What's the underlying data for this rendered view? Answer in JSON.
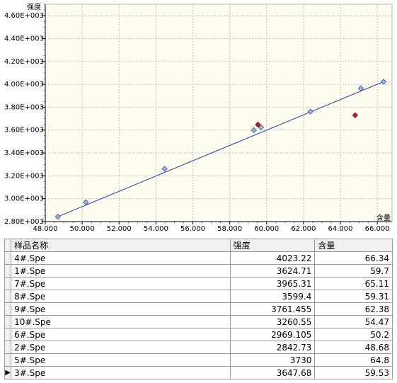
{
  "chart_data": {
    "type": "scatter",
    "xlabel": "含量",
    "ylabel": "强度",
    "xlim": [
      48.0,
      66.8
    ],
    "ylim": [
      2800,
      4700
    ],
    "x_ticks": [
      "48.000",
      "50.000",
      "52.000",
      "54.000",
      "56.000",
      "58.000",
      "60.000",
      "62.000",
      "64.000",
      "66.000"
    ],
    "y_ticks": [
      "2.80E+003",
      "3.00E+003",
      "3.20E+003",
      "3.40E+003",
      "3.60E+003",
      "3.80E+003",
      "4.00E+003",
      "4.20E+003",
      "4.40E+003",
      "4.60E+003"
    ],
    "calibration_line": [
      [
        48.68,
        2842.73
      ],
      [
        66.34,
        4023.22
      ]
    ],
    "series": [
      {
        "name": "",
        "marker": "diamond",
        "color": "#9bb7e0",
        "points": [
          [
            48.68,
            2842.73
          ],
          [
            50.2,
            2969.105
          ],
          [
            54.47,
            3260.55
          ],
          [
            59.31,
            3599.4
          ],
          [
            59.7,
            3624.71
          ],
          [
            62.38,
            3761.455
          ],
          [
            65.11,
            3965.31
          ],
          [
            66.34,
            4023.22
          ]
        ]
      },
      {
        "name": "",
        "marker": "diamond",
        "color": "#c0182a",
        "points": [
          [
            59.53,
            3647.68
          ],
          [
            64.8,
            3730
          ]
        ]
      }
    ],
    "grid": true,
    "colors": {
      "plot_bg": "#fefdf0",
      "line": "#2c3e9e",
      "grid": "#bdbdbd"
    }
  },
  "table": {
    "headers": [
      "样品名称",
      "强度",
      "含量"
    ],
    "rows": [
      {
        "name": "4#.Spe",
        "intensity": "4023.22",
        "content": "66.34"
      },
      {
        "name": "1#.Spe",
        "intensity": "3624.71",
        "content": "59.7"
      },
      {
        "name": "7#.Spe",
        "intensity": "3965.31",
        "content": "65.11"
      },
      {
        "name": "8#.Spe",
        "intensity": "3599.4",
        "content": "59.31"
      },
      {
        "name": "9#.Spe",
        "intensity": "3761.455",
        "content": "62.38"
      },
      {
        "name": "10#.Spe",
        "intensity": "3260.55",
        "content": "54.47"
      },
      {
        "name": "6#.Spe",
        "intensity": "2969.105",
        "content": "50.2"
      },
      {
        "name": "2#.Spe",
        "intensity": "2842.73",
        "content": "48.68"
      },
      {
        "name": "5#.Spe",
        "intensity": "3730",
        "content": "64.8"
      },
      {
        "name": "3#.Spe",
        "intensity": "3647.68",
        "content": "59.53"
      }
    ],
    "current_row_marker": "▶"
  }
}
